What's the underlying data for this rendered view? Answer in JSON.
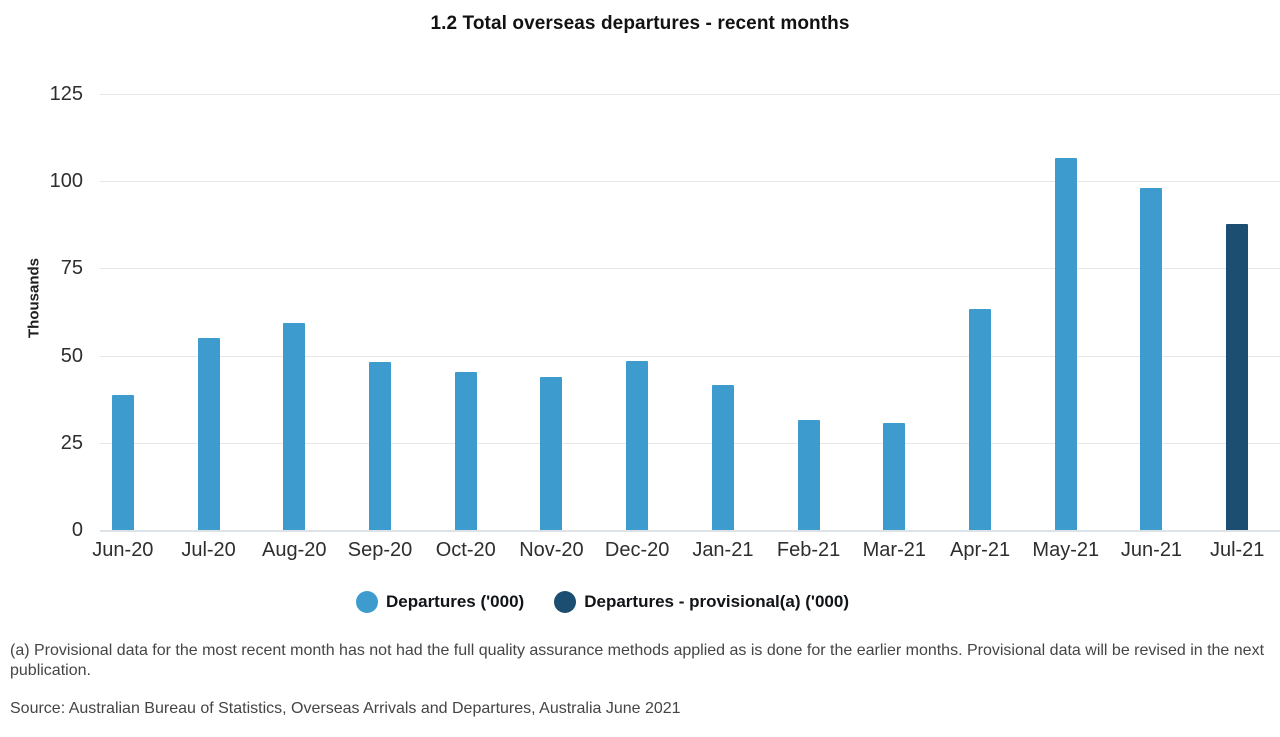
{
  "chart_data": {
    "type": "bar",
    "title": "1.2 Total overseas departures - recent months",
    "ylabel": "Thousands",
    "xlabel": "",
    "ylim": [
      0,
      125
    ],
    "yticks": [
      0,
      25,
      50,
      75,
      100,
      125
    ],
    "grid": true,
    "legend_position": "bottom",
    "categories": [
      "Jun-20",
      "Jul-20",
      "Aug-20",
      "Sep-20",
      "Oct-20",
      "Nov-20",
      "Dec-20",
      "Jan-21",
      "Feb-21",
      "Mar-21",
      "Apr-21",
      "May-21",
      "Jun-21",
      "Jul-21"
    ],
    "series": [
      {
        "name": "Departures ('000)",
        "color": "#3D9BCE",
        "values": [
          38.7,
          55.0,
          59.3,
          48.2,
          45.4,
          43.9,
          48.4,
          41.5,
          31.5,
          30.7,
          63.3,
          106.7,
          98.0,
          null
        ]
      },
      {
        "name": "Departures - provisional(a) ('000)",
        "color": "#1C4E71",
        "values": [
          null,
          null,
          null,
          null,
          null,
          null,
          null,
          null,
          null,
          null,
          null,
          null,
          null,
          87.6
        ]
      }
    ]
  },
  "notes": {
    "footnote_line1": "(a) Provisional data for the most recent month has not had the full quality assurance methods applied as is done for the earlier months. Provisional data will be revised in the next",
    "footnote_line2": "publication.",
    "source": "Source: Australian Bureau of Statistics, Overseas Arrivals and Departures, Australia June 2021"
  }
}
